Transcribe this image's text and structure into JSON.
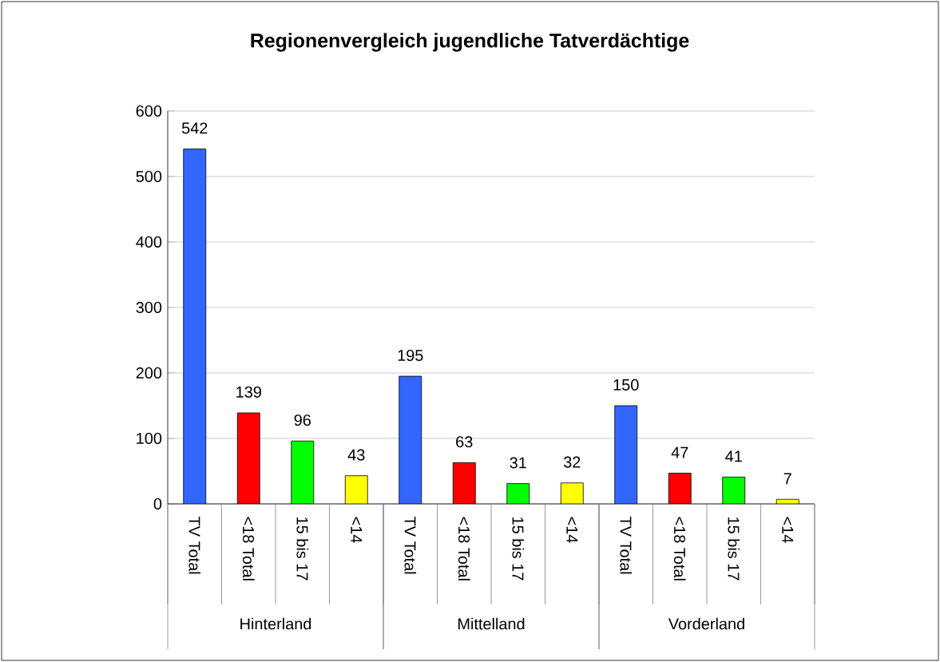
{
  "chart_data": {
    "type": "bar",
    "title": "Regionenvergleich jugendliche Tatverdächtige",
    "categories": [
      "TV Total",
      "<18 Total",
      "15 bis 17",
      "<14",
      "TV Total",
      "<18 Total",
      "15 bis 17",
      "<14",
      "TV Total",
      "<18 Total",
      "15 bis 17",
      "<14"
    ],
    "values": [
      542,
      139,
      96,
      43,
      195,
      63,
      31,
      32,
      150,
      47,
      41,
      7
    ],
    "colors": [
      "#3366ff",
      "#ff0000",
      "#00ff00",
      "#ffff00",
      "#3366ff",
      "#ff0000",
      "#00ff00",
      "#ffff00",
      "#3366ff",
      "#ff0000",
      "#00ff00",
      "#ffff00"
    ],
    "ylim": [
      0,
      600
    ],
    "yticks": [
      0,
      100,
      200,
      300,
      400,
      500,
      600
    ],
    "grid": "y",
    "data_labels": true,
    "annotations": [
      "Hinterland",
      "Mittelland",
      "Vorderland"
    ]
  }
}
